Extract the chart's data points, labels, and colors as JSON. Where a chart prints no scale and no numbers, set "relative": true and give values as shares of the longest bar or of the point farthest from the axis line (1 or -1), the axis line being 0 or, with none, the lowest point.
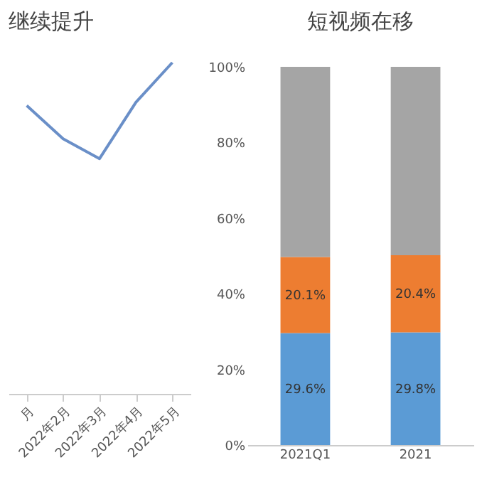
{
  "chart_data": [
    {
      "type": "line",
      "title": "继续提升",
      "categories": [
        "月",
        "2022年2月",
        "2022年3月",
        "2022年4月",
        "2022年5月"
      ],
      "values": [
        0.87,
        0.77,
        0.71,
        0.88,
        1.0
      ],
      "color": "#6a8fc8",
      "relative": true,
      "tick_labels": "x"
    },
    {
      "type": "bar",
      "title": "短视频在移",
      "categories": [
        "2021Q1",
        "2021"
      ],
      "stacked": true,
      "ylim": [
        0,
        100
      ],
      "yticks": [
        {
          "value": 0,
          "label": "0%"
        },
        {
          "value": 20,
          "label": "20%"
        },
        {
          "value": 40,
          "label": "40%"
        },
        {
          "value": 60,
          "label": "60%"
        },
        {
          "value": 80,
          "label": "80%"
        },
        {
          "value": 100,
          "label": "100%"
        }
      ],
      "series": [
        {
          "color": "#5b9bd5",
          "values": [
            29.6,
            29.8
          ],
          "value_labels": [
            "29.6%",
            "29.8%"
          ]
        },
        {
          "color": "#ed7d31",
          "values": [
            20.1,
            20.4
          ],
          "value_labels": [
            "20.1%",
            "20.4%"
          ]
        },
        {
          "color": "#a5a5a5",
          "values": [
            50.3,
            49.8
          ]
        }
      ]
    }
  ]
}
